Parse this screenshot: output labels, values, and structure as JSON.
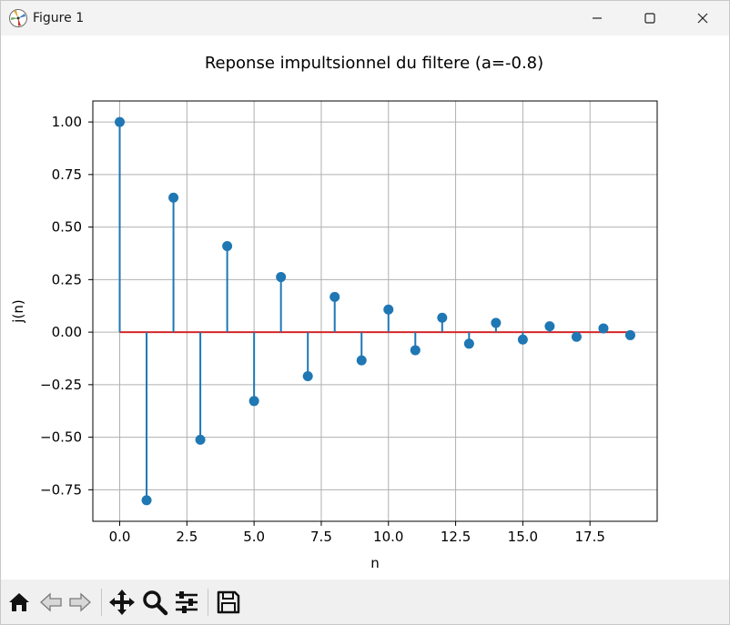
{
  "window": {
    "title": "Figure 1",
    "controls": [
      "minimize",
      "maximize",
      "close"
    ]
  },
  "toolbar": {
    "buttons": [
      {
        "name": "home",
        "icon": "home-icon"
      },
      {
        "name": "back",
        "icon": "arrow-left-icon"
      },
      {
        "name": "forward",
        "icon": "arrow-right-icon"
      },
      {
        "name": "pan",
        "icon": "move-icon"
      },
      {
        "name": "zoom",
        "icon": "magnifier-icon"
      },
      {
        "name": "configure-subplots",
        "icon": "sliders-icon"
      },
      {
        "name": "save",
        "icon": "floppy-disk-icon"
      }
    ]
  },
  "chart_data": {
    "type": "stem",
    "title": "Reponse impultsionnel du filtere (a=-0.8)",
    "xlabel": "n",
    "ylabel": "j(n)",
    "x": [
      0,
      1,
      2,
      3,
      4,
      5,
      6,
      7,
      8,
      9,
      10,
      11,
      12,
      13,
      14,
      15,
      16,
      17,
      18,
      19
    ],
    "y": [
      1.0,
      -0.8,
      0.64,
      -0.512,
      0.4096,
      -0.3277,
      0.2621,
      -0.2097,
      0.1678,
      -0.1342,
      0.1074,
      -0.0859,
      0.0687,
      -0.055,
      0.044,
      -0.0352,
      0.0281,
      -0.0225,
      0.018,
      -0.0144
    ],
    "xlim": [
      -1,
      20
    ],
    "ylim": [
      -0.9,
      1.1
    ],
    "xticks": [
      0.0,
      2.5,
      5.0,
      7.5,
      10.0,
      12.5,
      15.0,
      17.5
    ],
    "xtick_labels": [
      "0.0",
      "2.5",
      "5.0",
      "7.5",
      "10.0",
      "12.5",
      "15.0",
      "17.5"
    ],
    "yticks": [
      1.0,
      0.75,
      0.5,
      0.25,
      0.0,
      -0.25,
      -0.5,
      -0.75
    ],
    "ytick_labels": [
      "1.00",
      "0.75",
      "0.50",
      "0.25",
      "0.00",
      "−0.25",
      "−0.50",
      "−0.75"
    ],
    "grid": true,
    "colors": {
      "stem": "#1f77b4",
      "baseline": "#d62728",
      "grid": "#b0b0b0"
    }
  }
}
